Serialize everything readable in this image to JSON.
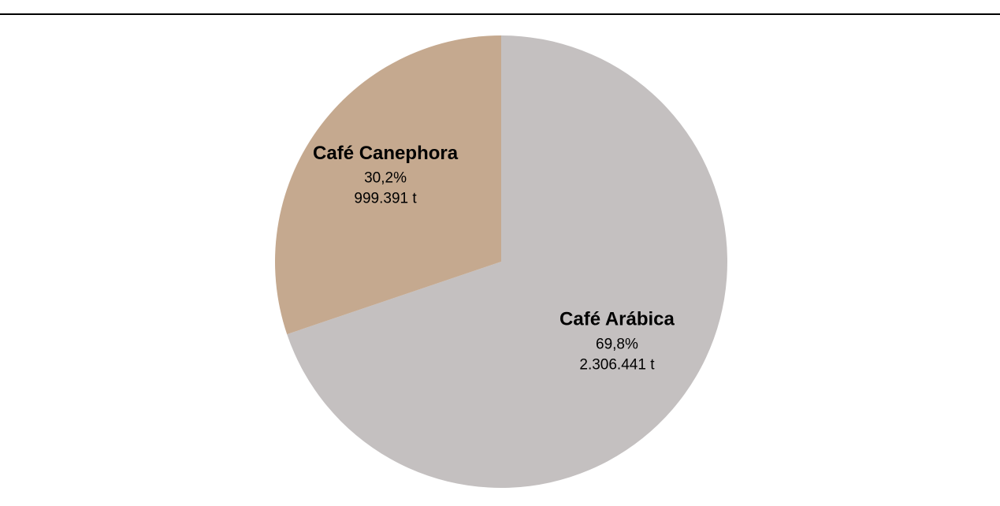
{
  "chart_data": {
    "type": "pie",
    "categories": [
      "Café Arábica",
      "Café Canephora"
    ],
    "values": [
      69.8,
      30.2
    ],
    "value_labels": [
      "69,8%",
      "30,2%"
    ],
    "tonnes": [
      2306441,
      999391
    ],
    "tonnes_labels": [
      "2.306.441 t",
      "999.391 t"
    ],
    "colors": [
      "#c4c0c0",
      "#c5a98f"
    ]
  }
}
